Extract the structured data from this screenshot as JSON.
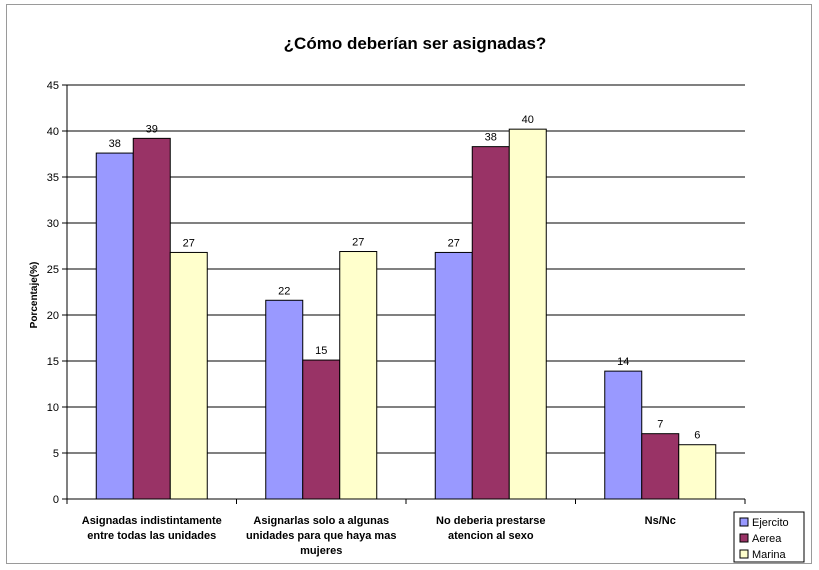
{
  "chart_data": {
    "type": "bar",
    "title": "¿Cómo deberían ser asignadas?",
    "xlabel": "",
    "ylabel": "Porcentaje(%)",
    "ylim": [
      0,
      45
    ],
    "yticks": [
      0,
      5,
      10,
      15,
      20,
      25,
      30,
      35,
      40,
      45
    ],
    "grid": true,
    "legend_position": "bottom-right",
    "categories": [
      [
        "Asignadas indistintamente",
        "entre todas las unidades"
      ],
      [
        "Asignarlas solo a algunas",
        "unidades para que haya mas",
        "mujeres"
      ],
      [
        "No deberia prestarse",
        "atencion al sexo"
      ],
      [
        "Ns/Nc"
      ]
    ],
    "series": [
      {
        "name": "Ejercito",
        "color": "#9999ff",
        "values": [
          37.6,
          21.6,
          26.8,
          13.9
        ],
        "labels": [
          "38",
          "22",
          "27",
          "14"
        ]
      },
      {
        "name": "Aerea",
        "color": "#993366",
        "values": [
          39.2,
          15.1,
          38.3,
          7.1
        ],
        "labels": [
          "39",
          "15",
          "38",
          "7"
        ]
      },
      {
        "name": "Marina",
        "color": "#ffffcc",
        "values": [
          26.8,
          26.9,
          40.2,
          5.9
        ],
        "labels": [
          "27",
          "27",
          "40",
          "6"
        ]
      }
    ]
  }
}
